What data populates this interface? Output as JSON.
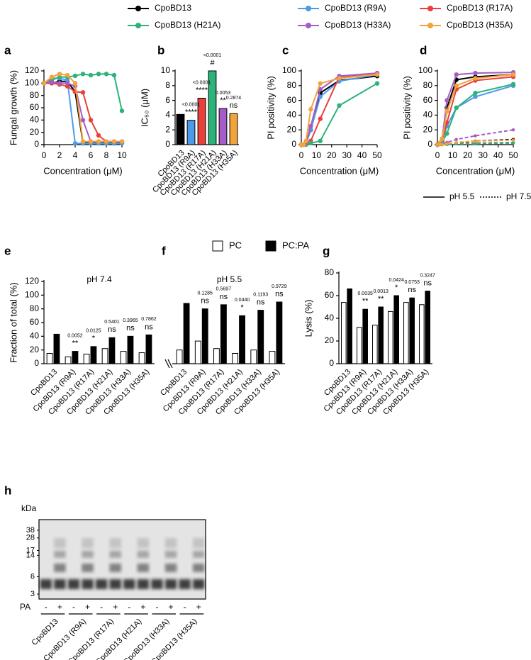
{
  "chart_data": [
    {
      "type": "line",
      "panel": "a",
      "xlabel": "Concentration (μM)",
      "ylabel": "Fungal growth (%)",
      "x": [
        0,
        1,
        2,
        3,
        4,
        5,
        6,
        7,
        8,
        9,
        10
      ],
      "series": [
        {
          "name": "CpoBD13",
          "color": "#000000",
          "values": [
            100,
            100,
            103,
            103,
            86,
            3,
            3,
            3,
            3,
            3,
            3
          ]
        },
        {
          "name": "CpoBD13 (R9A)",
          "color": "#4a9be8",
          "values": [
            100,
            108,
            108,
            105,
            2,
            2,
            2,
            2,
            2,
            2,
            2
          ]
        },
        {
          "name": "CpoBD13 (R17A)",
          "color": "#e8413c",
          "values": [
            100,
            100,
            98,
            95,
            86,
            85,
            40,
            15,
            5,
            5,
            5
          ]
        },
        {
          "name": "CpoBD13 (H21A)",
          "color": "#2bb37a",
          "values": [
            100,
            105,
            110,
            110,
            112,
            115,
            113,
            115,
            115,
            113,
            55
          ]
        },
        {
          "name": "CpoBD13 (H33A)",
          "color": "#a45cc7",
          "values": [
            100,
            102,
            100,
            100,
            95,
            40,
            5,
            5,
            5,
            5,
            5
          ]
        },
        {
          "name": "CpoBD13 (H35A)",
          "color": "#f2a33a",
          "values": [
            100,
            110,
            115,
            113,
            100,
            5,
            5,
            5,
            5,
            5,
            5
          ]
        }
      ],
      "xlim": [
        0,
        10
      ],
      "xticks": [
        0,
        2,
        4,
        6,
        8,
        10
      ],
      "ylim": [
        0,
        120
      ],
      "yticks": [
        0,
        20,
        40,
        60,
        80,
        100,
        120
      ]
    },
    {
      "type": "bar",
      "panel": "b",
      "ylabel": "IC₅₀ (μM)",
      "categories": [
        "CpoBD13",
        "CpoBD13 (R9A)",
        "CpoBD13 (R17A)",
        "CpoBD13 (H21A)",
        "CpoBD13 (H33A)",
        "CpoBD13 (H35A)"
      ],
      "values": [
        4.1,
        3.3,
        6.3,
        10,
        4.9,
        4.2
      ],
      "colors": [
        "#000000",
        "#4a9be8",
        "#e8413c",
        "#2bb37a",
        "#a45cc7",
        "#f2a33a"
      ],
      "annotations": [
        null,
        {
          "p": "<0.0001",
          "sig": "****"
        },
        {
          "p": "<0.0001",
          "sig": "****"
        },
        {
          "p": "<0.0001",
          "sig": "#"
        },
        {
          "p": "0.0053",
          "sig": "**"
        },
        {
          "p": "0.2874",
          "sig": "ns"
        }
      ],
      "ylim": [
        0,
        10
      ],
      "yticks": [
        0,
        2,
        4,
        6,
        8,
        10
      ]
    },
    {
      "type": "line",
      "panel": "c",
      "xlabel": "Concentration (μM)",
      "ylabel": "PI positivity (%)",
      "x": [
        0,
        1.56,
        3.125,
        6.25,
        12.5,
        25,
        50
      ],
      "series": [
        {
          "name": "CpoBD13",
          "color": "#000000",
          "values": [
            0,
            0,
            2,
            20,
            70,
            87,
            93
          ]
        },
        {
          "name": "CpoBD13 (R9A)",
          "color": "#4a9be8",
          "values": [
            0,
            0,
            2,
            20,
            65,
            86,
            95
          ]
        },
        {
          "name": "CpoBD13 (R17A)",
          "color": "#e8413c",
          "values": [
            0,
            0,
            2,
            5,
            35,
            92,
            97
          ]
        },
        {
          "name": "CpoBD13 (H21A)",
          "color": "#2bb37a",
          "values": [
            0,
            0,
            0,
            2,
            5,
            53,
            83
          ]
        },
        {
          "name": "CpoBD13 (H33A)",
          "color": "#a45cc7",
          "values": [
            0,
            0,
            2,
            25,
            75,
            93,
            97
          ]
        },
        {
          "name": "CpoBD13 (H35A)",
          "color": "#f2a33a",
          "values": [
            0,
            0,
            5,
            48,
            83,
            90,
            95
          ]
        }
      ],
      "xlim": [
        0,
        50
      ],
      "xticks": [
        0,
        10,
        20,
        30,
        40,
        50
      ],
      "ylim": [
        0,
        100
      ],
      "yticks": [
        0,
        20,
        40,
        60,
        80,
        100
      ]
    },
    {
      "type": "line",
      "panel": "d",
      "xlabel": "Concentration (μM)",
      "ylabel": "PI positivity (%)",
      "x": [
        0,
        1.56,
        3.125,
        6.25,
        12.5,
        25,
        50
      ],
      "series": [
        {
          "name": "CpoBD13",
          "color": "#000000",
          "style": "solid",
          "values": [
            0,
            2,
            8,
            50,
            88,
            92,
            95
          ]
        },
        {
          "name": "CpoBD13 (R9A)",
          "color": "#4a9be8",
          "style": "solid",
          "values": [
            0,
            2,
            5,
            25,
            50,
            65,
            80
          ]
        },
        {
          "name": "CpoBD13 (R17A)",
          "color": "#e8413c",
          "style": "solid",
          "values": [
            0,
            1,
            5,
            30,
            75,
            87,
            92
          ]
        },
        {
          "name": "CpoBD13 (H21A)",
          "color": "#2bb37a",
          "style": "solid",
          "values": [
            0,
            1,
            3,
            15,
            50,
            70,
            82
          ]
        },
        {
          "name": "CpoBD13 (H33A)",
          "color": "#a45cc7",
          "style": "solid",
          "values": [
            0,
            2,
            8,
            60,
            95,
            97,
            98
          ]
        },
        {
          "name": "CpoBD13 (H35A)",
          "color": "#f2a33a",
          "style": "solid",
          "values": [
            0,
            2,
            8,
            45,
            80,
            90,
            95
          ]
        },
        {
          "name": "CpoBD13",
          "color": "#000000",
          "style": "dashed",
          "values": [
            0,
            0,
            0,
            1,
            2,
            5,
            7
          ]
        },
        {
          "name": "CpoBD13 (R9A)",
          "color": "#4a9be8",
          "style": "dashed",
          "values": [
            0,
            0,
            0,
            1,
            1,
            2,
            3
          ]
        },
        {
          "name": "CpoBD13 (R17A)",
          "color": "#e8413c",
          "style": "dashed",
          "values": [
            0,
            0,
            0,
            1,
            1,
            2,
            2
          ]
        },
        {
          "name": "CpoBD13 (H21A)",
          "color": "#2bb37a",
          "style": "dashed",
          "values": [
            0,
            0,
            0,
            0,
            1,
            1,
            2
          ]
        },
        {
          "name": "CpoBD13 (H33A)",
          "color": "#a45cc7",
          "style": "dashed",
          "values": [
            0,
            0,
            1,
            3,
            7,
            12,
            20
          ]
        },
        {
          "name": "CpoBD13 (H35A)",
          "color": "#f2a33a",
          "style": "dashed",
          "values": [
            0,
            0,
            0,
            1,
            3,
            5,
            6
          ]
        }
      ],
      "line_legend": [
        {
          "label": "pH 5.5",
          "style": "solid"
        },
        {
          "label": "pH 7.5",
          "style": "dashed"
        }
      ],
      "xlim": [
        0,
        50
      ],
      "xticks": [
        0,
        10,
        20,
        30,
        40,
        50
      ],
      "ylim": [
        0,
        100
      ],
      "yticks": [
        0,
        20,
        40,
        60,
        80,
        100
      ]
    },
    {
      "type": "bar",
      "panel": "e",
      "title": "pH 7.4",
      "ylabel": "Fraction of total (%)",
      "categories": [
        "CpoBD13",
        "CpoBD13 (R9A)",
        "CpoBD13 (R17A)",
        "CpoBD13 (H21A)",
        "CpoBD13 (H33A)",
        "CpoBD13 (H35A)"
      ],
      "series": [
        {
          "name": "PC",
          "color": "#ffffff",
          "values": [
            15,
            10,
            14,
            22,
            18,
            16
          ]
        },
        {
          "name": "PC:PA",
          "color": "#000000",
          "values": [
            43,
            18,
            25,
            38,
            40,
            42
          ]
        }
      ],
      "annotations": [
        null,
        {
          "p": "0.0052",
          "sig": "**"
        },
        {
          "p": "0.0125",
          "sig": "*"
        },
        {
          "p": "0.5401",
          "sig": "ns"
        },
        {
          "p": "0.3965",
          "sig": "ns"
        },
        {
          "p": "0.7862",
          "sig": "ns"
        }
      ],
      "ylim": [
        0,
        120
      ],
      "yticks": [
        0,
        20,
        40,
        60,
        80,
        100,
        120
      ]
    },
    {
      "type": "bar",
      "panel": "f",
      "title": "pH 5.5",
      "categories": [
        "CpoBD13",
        "CpoBD13 (R9A)",
        "CpoBD13 (R17A)",
        "CpoBD13 (H21A)",
        "CpoBD13 (H33A)",
        "CpoBD13 (H35A)"
      ],
      "series": [
        {
          "name": "PC",
          "color": "#ffffff",
          "values": [
            20,
            33,
            22,
            15,
            20,
            18
          ]
        },
        {
          "name": "PC:PA",
          "color": "#000000",
          "values": [
            88,
            80,
            86,
            70,
            78,
            90
          ]
        }
      ],
      "annotations": [
        null,
        {
          "p": "0.1285",
          "sig": "ns"
        },
        {
          "p": "0.5697",
          "sig": "ns"
        },
        {
          "p": "0.0440",
          "sig": "*"
        },
        {
          "p": "0.1193",
          "sig": "ns"
        },
        {
          "p": "0.9729",
          "sig": "ns"
        }
      ],
      "ylim": [
        0,
        120
      ]
    },
    {
      "type": "bar",
      "panel": "g",
      "ylabel": "Lysis (%)",
      "categories": [
        "CpoBD13",
        "CpoBD13 (R9A)",
        "CpoBD13 (R17A)",
        "CpoBD13 (H21A)",
        "CpoBD13 (H33A)",
        "CpoBD13 (H35A)"
      ],
      "series": [
        {
          "name": "PC",
          "color": "#ffffff",
          "values": [
            54,
            32,
            34,
            46,
            54,
            52
          ]
        },
        {
          "name": "PC:PA",
          "color": "#000000",
          "values": [
            66,
            48,
            50,
            60,
            58,
            64
          ]
        }
      ],
      "annotations": [
        null,
        {
          "p": "0.0035",
          "sig": "**"
        },
        {
          "p": "0.0013",
          "sig": "**"
        },
        {
          "p": "0.0424",
          "sig": "*"
        },
        {
          "p": "0.0753",
          "sig": "ns"
        },
        {
          "p": "0.3247",
          "sig": "ns"
        }
      ],
      "ylim": [
        0,
        80
      ],
      "yticks": [
        0,
        20,
        40,
        60,
        80
      ]
    },
    {
      "type": "gel",
      "panel": "h",
      "ylabel": "kDa",
      "markers": [
        38,
        28,
        17,
        14,
        6,
        3
      ],
      "row_label": "PA",
      "lanes": [
        "-",
        "+"
      ],
      "categories": [
        "CpoBD13",
        "CpoBD13 (R9A)",
        "CpoBD13 (R17A)",
        "CpoBD13 (H21A)",
        "CpoBD13 (H33A)",
        "CpoBD13 (H35A)"
      ]
    }
  ]
}
